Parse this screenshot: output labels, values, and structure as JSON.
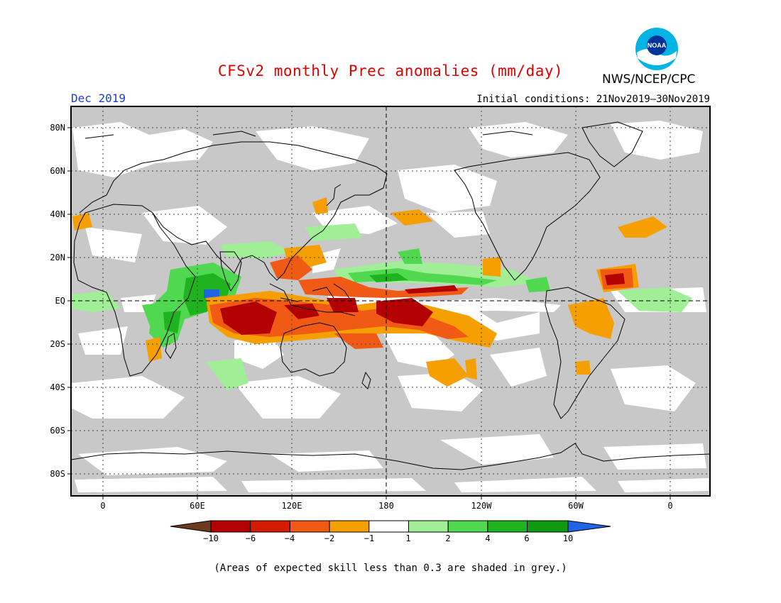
{
  "header": {
    "title": "CFSv2 monthly Prec anomalies (mm/day)",
    "month": "Dec 2019",
    "initial_conditions": "Initial conditions: 21Nov2019–30Nov2019",
    "agency": "NWS/NCEP/CPC",
    "logo_text": "NOAA"
  },
  "map": {
    "lat_labels": [
      "80N",
      "60N",
      "40N",
      "20N",
      "EQ",
      "20S",
      "40S",
      "60S",
      "80S"
    ],
    "lon_labels": [
      "0",
      "60E",
      "120E",
      "180",
      "120W",
      "60W",
      "0"
    ],
    "lat_range": [
      -90,
      90
    ],
    "lon_range": [
      -20,
      380
    ],
    "grid": "dotted every 20° latitude and 60° longitude",
    "dateline_meridian": "180",
    "colors": {
      "grey_low_skill": "#c8c8c8",
      "ocean_background": "#ffffff",
      "coastline": "#000000"
    }
  },
  "colorbar": {
    "labels": [
      "−10",
      "−6",
      "−4",
      "−2",
      "−1",
      "1",
      "2",
      "4",
      "6",
      "10"
    ],
    "bins": [
      {
        "range": "< -10",
        "color": "#6e3a1e"
      },
      {
        "range": "-10 to -6",
        "color": "#b30000"
      },
      {
        "range": "-6 to -4",
        "color": "#d41c00"
      },
      {
        "range": "-4 to -2",
        "color": "#f05a14"
      },
      {
        "range": "-2 to -1",
        "color": "#f5a000"
      },
      {
        "range": "-1 to 1",
        "color": "#ffffff"
      },
      {
        "range": "1 to 2",
        "color": "#a0ee96"
      },
      {
        "range": "2 to 4",
        "color": "#50d850"
      },
      {
        "range": "4 to 6",
        "color": "#1fb41f"
      },
      {
        "range": "6 to 10",
        "color": "#0f9a0f"
      },
      {
        "range": "> 10",
        "color": "#1e64e6"
      }
    ]
  },
  "footnote": "(Areas of expected skill less than 0.3 are shaded in grey.)"
}
